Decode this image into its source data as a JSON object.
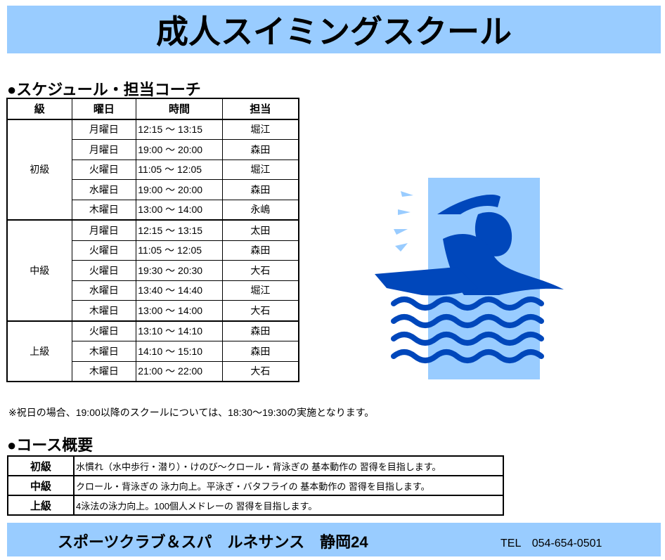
{
  "title": "成人スイミングスクール",
  "schedule": {
    "heading": "●スケジュール・担当コーチ",
    "headers": [
      "級",
      "曜日",
      "時間",
      "担当"
    ],
    "groups": [
      {
        "level": "初級",
        "rows": [
          {
            "day": "月曜日",
            "time": "12:15 ～ 13:15",
            "coach": "堀江"
          },
          {
            "day": "月曜日",
            "time": "19:00 ～ 20:00",
            "coach": "森田"
          },
          {
            "day": "火曜日",
            "time": "11:05 ～ 12:05",
            "coach": "堀江"
          },
          {
            "day": "水曜日",
            "time": "19:00 ～ 20:00",
            "coach": "森田"
          },
          {
            "day": "木曜日",
            "time": "13:00 ～ 14:00",
            "coach": "永嶋"
          }
        ]
      },
      {
        "level": "中級",
        "rows": [
          {
            "day": "月曜日",
            "time": "12:15 ～ 13:15",
            "coach": "太田"
          },
          {
            "day": "火曜日",
            "time": "11:05 ～ 12:05",
            "coach": "森田"
          },
          {
            "day": "火曜日",
            "time": "19:30 ～ 20:30",
            "coach": "大石"
          },
          {
            "day": "水曜日",
            "time": "13:40 ～ 14:40",
            "coach": "堀江"
          },
          {
            "day": "木曜日",
            "time": "13:00 ～ 14:00",
            "coach": "大石"
          }
        ]
      },
      {
        "level": "上級",
        "rows": [
          {
            "day": "火曜日",
            "time": "13:10 ～ 14:10",
            "coach": "森田"
          },
          {
            "day": "木曜日",
            "time": "14:10 ～ 15:10",
            "coach": "森田"
          },
          {
            "day": "木曜日",
            "time": "21:00 ～ 22:00",
            "coach": "大石"
          }
        ]
      }
    ]
  },
  "note": "※祝日の場合、19:00以降のスクールについては、18:30～19:30の実施となります。",
  "course": {
    "heading": "●コース概要",
    "rows": [
      {
        "level": "初級",
        "desc": "水慣れ（水中歩行・潜り）・けのび～クロール・背泳ぎの 基本動作の 習得を目指します。"
      },
      {
        "level": "中級",
        "desc": "クロール・背泳ぎの 泳力向上。平泳ぎ・バタフライの 基本動作の 習得を目指します。"
      },
      {
        "level": "上級",
        "desc": "4泳法の泳力向上。100個人メドレーの 習得を目指します。"
      }
    ]
  },
  "footer": {
    "club": "スポーツクラブ＆スパ　ルネサンス　静岡24",
    "tel": "TEL　054-654-0501"
  },
  "colors": {
    "banner": "#99ccff",
    "swimmer": "#0047bb",
    "pool": "#99ccff"
  },
  "illustration": "swimmer-icon"
}
